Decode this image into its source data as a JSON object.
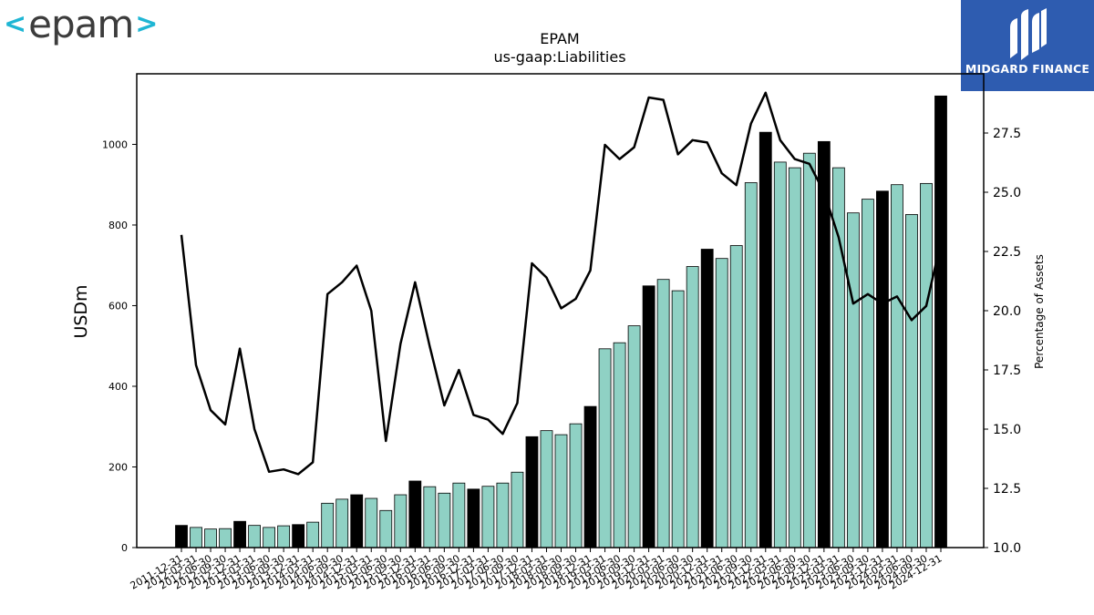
{
  "logos": {
    "left": {
      "chevron_left": "<",
      "word": "epam",
      "chevron_right": ">"
    },
    "right": {
      "icon": "midgard-m-icon",
      "text": "MIDGARD FINANCE",
      "color": "#2e5cb0"
    }
  },
  "chart_data": {
    "type": "bar",
    "title": "EPAM",
    "subtitle": "us-gaap:Liabilities",
    "ylabel": "USDm",
    "y2label": "Percentage of Assets",
    "ylim": [
      0,
      1175
    ],
    "y2lim": [
      10,
      30
    ],
    "yticks": [
      0,
      200,
      400,
      600,
      800,
      1000
    ],
    "y2ticks": [
      10.0,
      12.5,
      15.0,
      17.5,
      20.0,
      22.5,
      25.0,
      27.5
    ],
    "colors": {
      "annual_bar": "#000000",
      "quarter_bar": "#8fd1c4",
      "line": "#000000"
    },
    "categories": [
      "2011-12-31",
      "2012-03-31",
      "2012-06-30",
      "2012-09-30",
      "2012-12-31",
      "2013-03-31",
      "2013-06-30",
      "2013-09-30",
      "2013-12-31",
      "2014-03-31",
      "2014-06-30",
      "2014-09-30",
      "2014-12-31",
      "2015-03-31",
      "2015-06-30",
      "2015-09-30",
      "2015-12-31",
      "2016-03-31",
      "2016-06-30",
      "2016-09-30",
      "2016-12-31",
      "2017-03-31",
      "2017-06-30",
      "2017-09-30",
      "2017-12-31",
      "2018-03-31",
      "2018-06-30",
      "2018-09-30",
      "2018-12-31",
      "2019-03-31",
      "2019-06-30",
      "2019-09-30",
      "2019-12-31",
      "2020-03-31",
      "2020-06-30",
      "2020-09-30",
      "2020-12-31",
      "2021-03-31",
      "2021-06-30",
      "2021-09-30",
      "2021-12-31",
      "2022-03-31",
      "2022-06-30",
      "2022-09-30",
      "2022-12-31",
      "2023-03-31",
      "2023-06-30",
      "2023-09-30",
      "2023-12-31",
      "2024-03-31",
      "2024-06-30",
      "2024-09-30",
      "2024-12-31"
    ],
    "series": [
      {
        "type": "bar",
        "values": [
          55,
          50,
          46,
          47,
          65,
          55,
          50,
          54,
          57,
          63,
          110,
          120,
          131,
          122,
          92,
          131,
          165,
          151,
          135,
          160,
          145,
          152,
          160,
          187,
          275,
          290,
          280,
          307,
          350,
          493,
          508,
          550,
          649,
          665,
          637,
          697,
          740,
          717,
          749,
          905,
          1030,
          956,
          942,
          978,
          1007,
          942,
          830,
          864,
          884,
          900,
          826,
          903,
          1120
        ],
        "annual": [
          true,
          false,
          false,
          false,
          true,
          false,
          false,
          false,
          true,
          false,
          false,
          false,
          true,
          false,
          false,
          false,
          true,
          false,
          false,
          false,
          true,
          false,
          false,
          false,
          true,
          false,
          false,
          false,
          true,
          false,
          false,
          false,
          true,
          false,
          false,
          false,
          true,
          false,
          false,
          false,
          true,
          false,
          false,
          false,
          true,
          false,
          false,
          false,
          true,
          false,
          false,
          false,
          true
        ]
      },
      {
        "type": "line",
        "axis": "right",
        "values": [
          23.2,
          17.7,
          15.8,
          15.2,
          18.4,
          15.0,
          13.2,
          13.3,
          13.1,
          13.6,
          20.7,
          21.2,
          21.9,
          20.0,
          14.5,
          18.6,
          21.2,
          18.5,
          16.0,
          17.5,
          15.6,
          15.4,
          14.8,
          16.1,
          22.0,
          21.4,
          20.1,
          20.5,
          21.7,
          27.0,
          26.4,
          26.9,
          29.0,
          28.9,
          26.6,
          27.2,
          27.1,
          25.8,
          25.3,
          27.9,
          29.2,
          27.2,
          26.4,
          26.2,
          25.0,
          23.1,
          20.3,
          20.7,
          20.3,
          20.6,
          19.6,
          20.2,
          22.9
        ]
      }
    ],
    "legend": "none",
    "grid": false
  }
}
